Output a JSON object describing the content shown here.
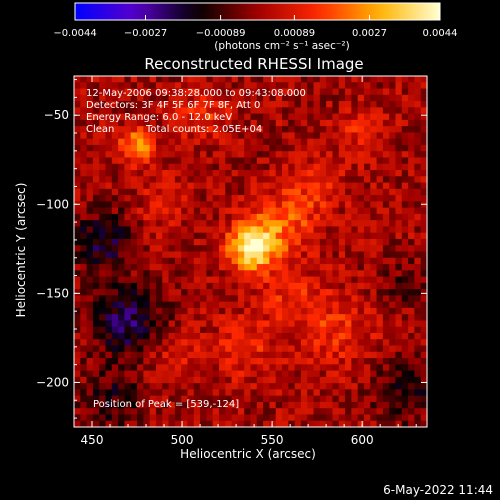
{
  "chart_data": {
    "type": "heatmap",
    "title": "Reconstructed RHESSI Image",
    "xlabel": "Heliocentric X (arcsec)",
    "ylabel": "Heliocentric Y (arcsec)",
    "xlim": [
      440,
      636
    ],
    "ylim": [
      -225,
      -28
    ],
    "x_ticks": [
      450,
      500,
      550,
      600
    ],
    "y_ticks": [
      -50,
      -100,
      -150,
      -200
    ],
    "x_tick_labels": [
      "450",
      "500",
      "550",
      "600"
    ],
    "y_tick_labels": [
      "−50",
      "−100",
      "−150",
      "−200"
    ],
    "colorbar": {
      "min": -0.0044,
      "max": 0.0044,
      "ticks": [
        -0.0044,
        -0.0027,
        -0.00089,
        0.00089,
        0.0027,
        0.0044
      ],
      "tick_labels": [
        "−0.0044",
        "−0.0027",
        "−0.00089",
        "0.00089",
        "0.0027",
        "0.0044"
      ],
      "units": "(photons cm⁻² s⁻¹ asec⁻²)",
      "colors": [
        "#0000ff",
        "#5a00c8",
        "#000000",
        "#a00000",
        "#ff2800",
        "#ffb400",
        "#ffffd2"
      ]
    },
    "annotations": [
      "12-May-2006 09:38:28.000 to 09:43:08.000",
      "Detectors: 3F 4F 5F 6F 7F 8F, Att 0",
      "Energy Range: 6.0 - 12.0 keV",
      "Clean",
      "Total counts: 2.05E+04"
    ],
    "peak_label": "Position of Peak = [539,-124]",
    "peak": {
      "x": 539,
      "y": -124,
      "value": 0.0044
    },
    "sources": [
      {
        "x": 539,
        "y": -124,
        "sigma": 9,
        "value": 0.0044
      },
      {
        "x": 475,
        "y": -67,
        "sigma": 7,
        "value": 0.0025
      },
      {
        "x": 557,
        "y": -110,
        "sigma": 12,
        "value": 0.0018
      },
      {
        "x": 575,
        "y": -90,
        "sigma": 10,
        "value": 0.0012
      },
      {
        "x": 512,
        "y": -50,
        "sigma": 10,
        "value": 0.0012
      },
      {
        "x": 600,
        "y": -60,
        "sigma": 9,
        "value": 0.0011
      },
      {
        "x": 585,
        "y": -170,
        "sigma": 14,
        "value": 0.0012
      },
      {
        "x": 535,
        "y": -180,
        "sigma": 12,
        "value": 0.0011
      },
      {
        "x": 495,
        "y": -185,
        "sigma": 10,
        "value": 0.0009
      },
      {
        "x": 490,
        "y": -100,
        "sigma": 10,
        "value": 0.0009
      },
      {
        "x": 560,
        "y": -150,
        "sigma": 12,
        "value": 0.001
      },
      {
        "x": 470,
        "y": -165,
        "sigma": 14,
        "value": -0.0022
      },
      {
        "x": 455,
        "y": -120,
        "sigma": 12,
        "value": -0.0018
      },
      {
        "x": 460,
        "y": -210,
        "sigma": 12,
        "value": -0.0014
      },
      {
        "x": 625,
        "y": -205,
        "sigma": 12,
        "value": -0.0015
      },
      {
        "x": 625,
        "y": -145,
        "sigma": 10,
        "value": -0.0008
      }
    ]
  },
  "footer": {
    "timestamp": "6-May-2022 11:44"
  }
}
